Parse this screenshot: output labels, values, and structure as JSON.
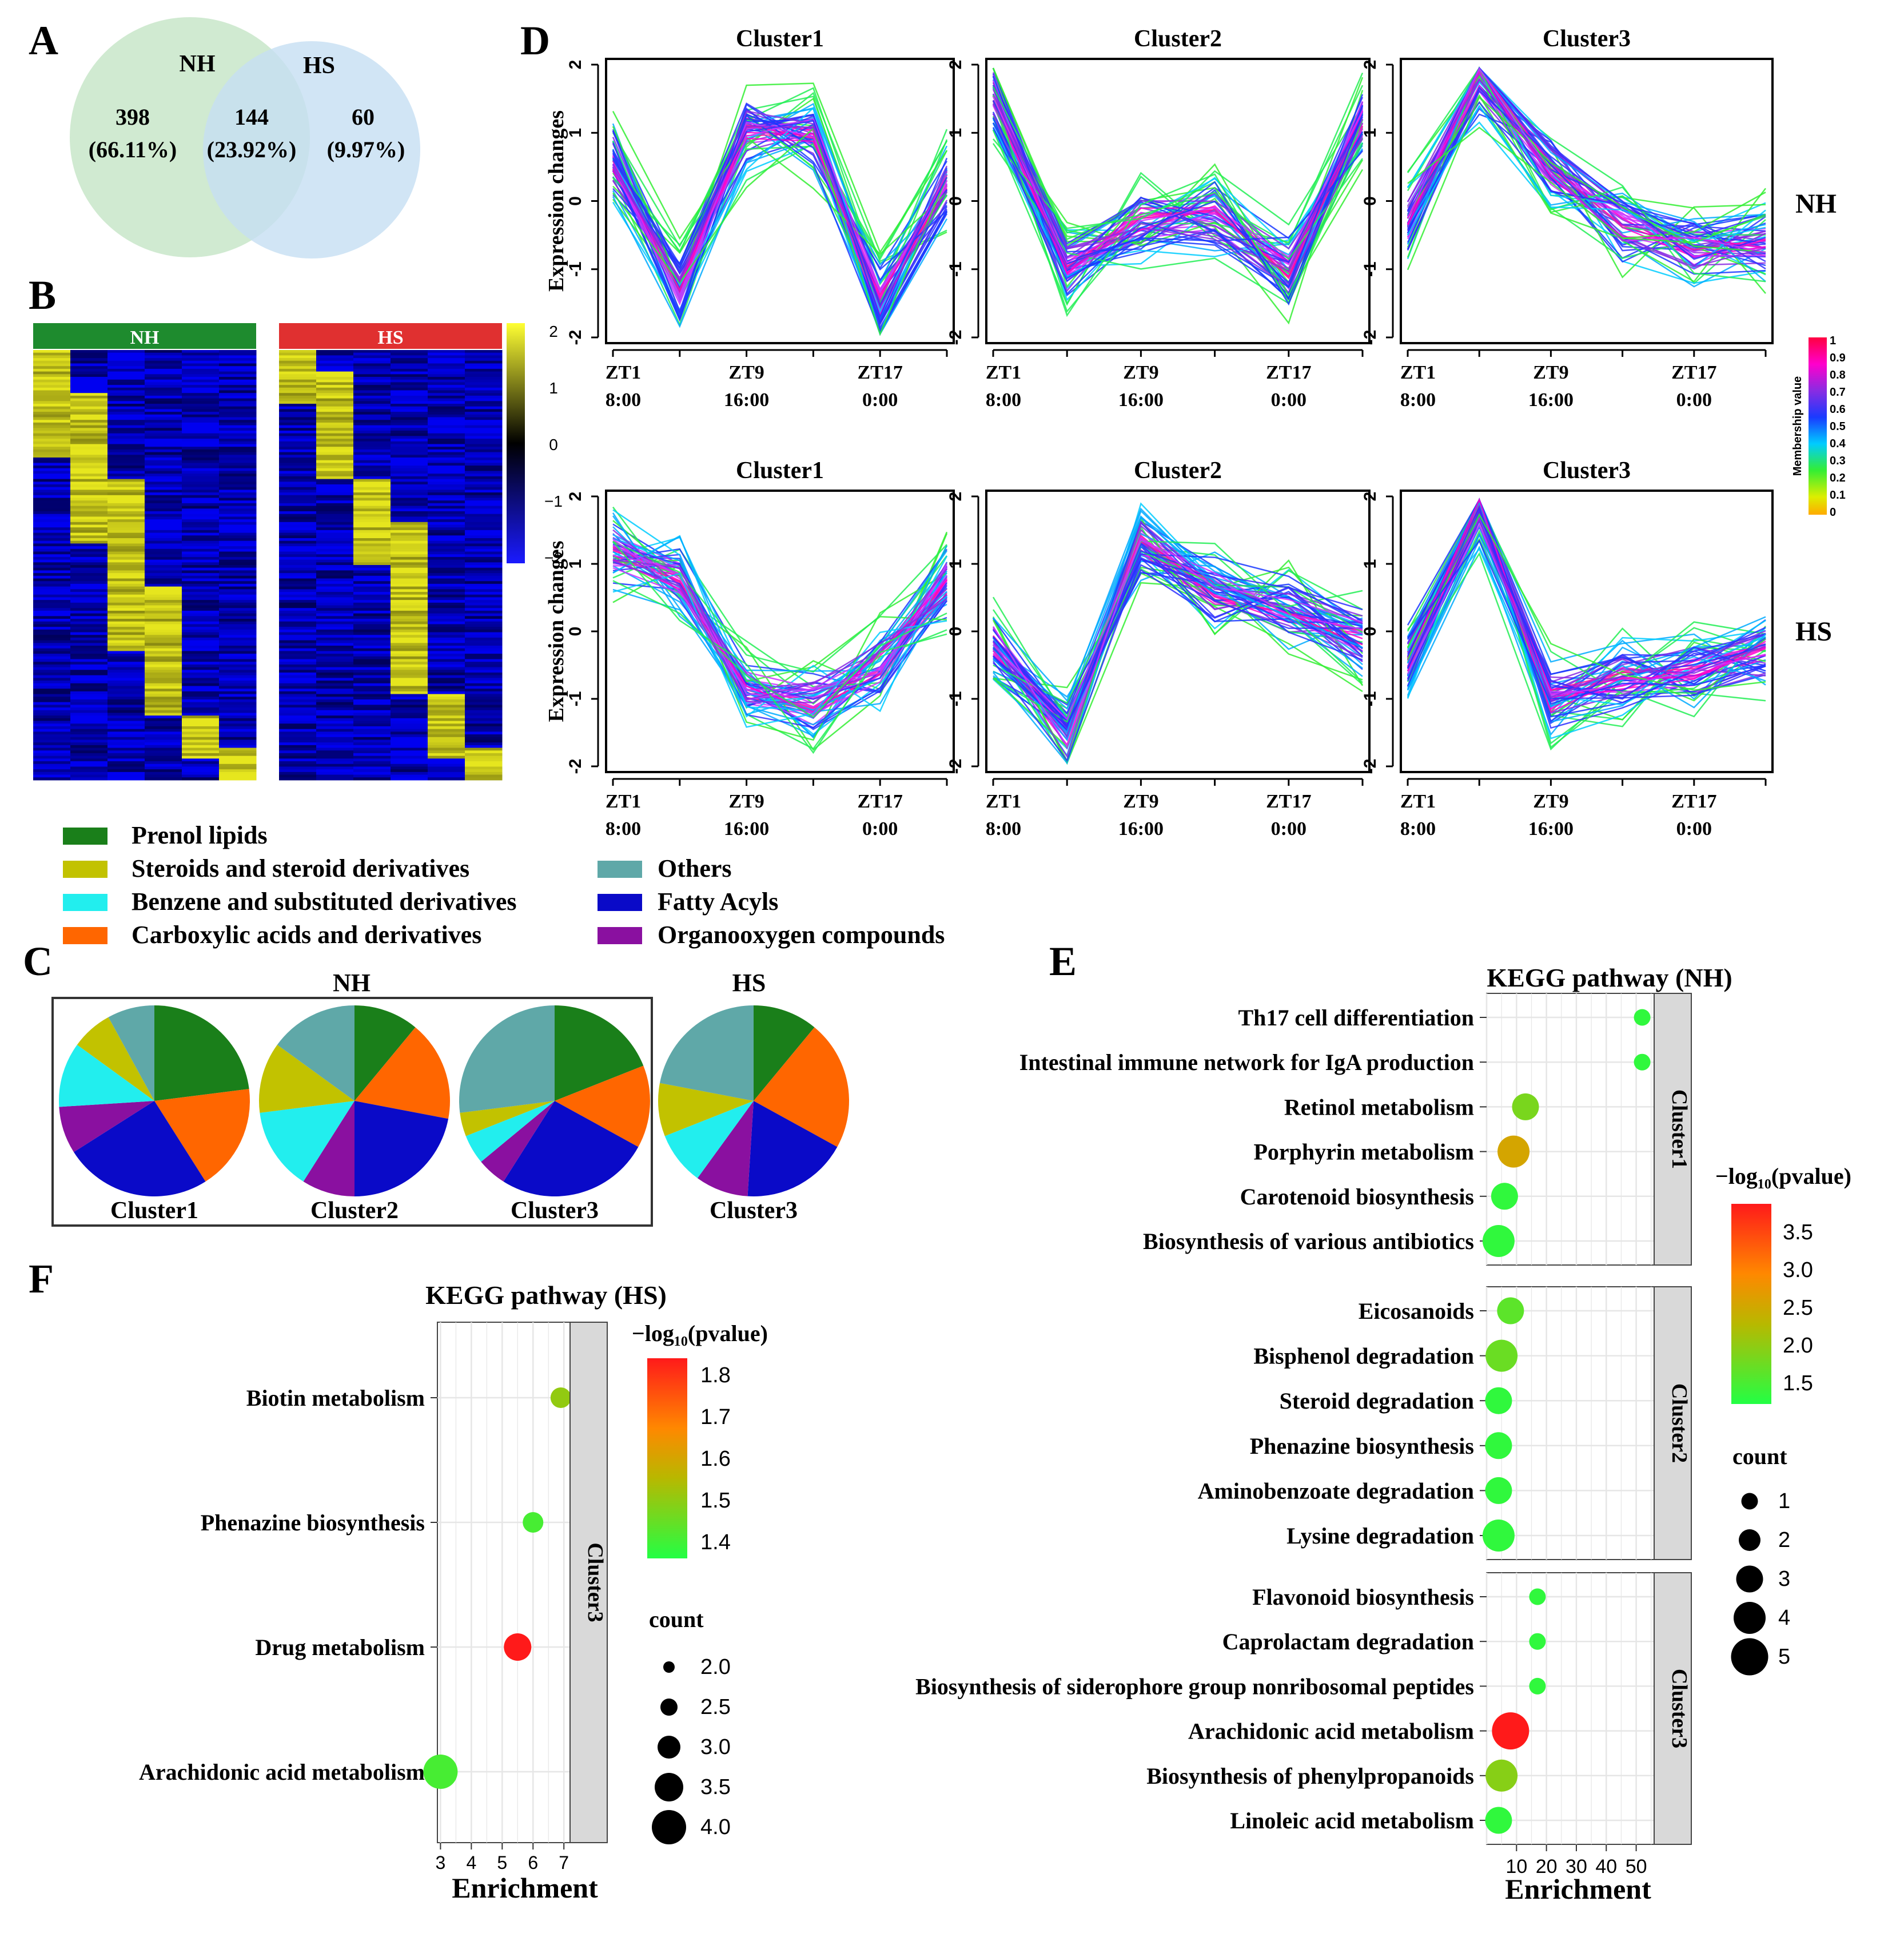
{
  "panel_letters": {
    "A": "A",
    "B": "B",
    "C": "C",
    "D": "D",
    "E": "E",
    "F": "F"
  },
  "venn": {
    "set1": {
      "name": "NH",
      "color": "#c8e6c9"
    },
    "set2": {
      "name": "HS",
      "color": "#c6dff2"
    },
    "left_count": "398",
    "left_pct": "(66.11%)",
    "mid_count": "144",
    "mid_pct": "(23.92%)",
    "right_count": "60",
    "right_pct": "(9.97%)"
  },
  "heatmap": {
    "left_label": "NH",
    "right_label": "HS",
    "left_color": "#1e8b2e",
    "right_color": "#e03030",
    "scale_ticks": [
      "2",
      "1",
      "0",
      "−1",
      "−2"
    ],
    "scale_colors": [
      "#ffff33",
      "#000000",
      "#1a1aff"
    ]
  },
  "category_legend": [
    {
      "label": "Prenol lipids",
      "color": "#1a7f1a"
    },
    {
      "label": "Steroids and steroid derivatives",
      "color": "#c2c200"
    },
    {
      "label": "Benzene and substituted derivatives",
      "color": "#22eeee"
    },
    {
      "label": "Carboxylic acids and derivatives",
      "color": "#ff6600"
    },
    {
      "label": "Others",
      "color": "#5fa8a8"
    },
    {
      "label": "Fatty Acyls",
      "color": "#0a0ac8"
    },
    {
      "label": "Organooxygen compounds",
      "color": "#8a10a0"
    }
  ],
  "pies": {
    "nh_title": "NH",
    "hs_title": "HS",
    "items": [
      {
        "label": "Cluster1",
        "group": "NH",
        "values": [
          23,
          0,
          0,
          18,
          25,
          8,
          11,
          7,
          8
        ]
      },
      {
        "label": "Cluster2",
        "group": "NH",
        "values": [
          11,
          0,
          0,
          17,
          22,
          9,
          14,
          12,
          15
        ]
      },
      {
        "label": "Cluster3",
        "group": "NH",
        "values": [
          19,
          0,
          0,
          14,
          26,
          5,
          5,
          4,
          27
        ]
      },
      {
        "label": "Cluster3",
        "group": "HS",
        "values": [
          11,
          0,
          0,
          22,
          18,
          9,
          9,
          9,
          22
        ]
      }
    ],
    "slice_order_note": "values in legend order: Prenol, -, -, Carboxylic, Fatty, Organooxygen, Benzene, Steroids, Others"
  },
  "chart_data": [
    {
      "type": "line",
      "title": "Cluster1",
      "group": "NH",
      "panel": "D",
      "ylabel": "Expression changes",
      "ylim": [
        -2,
        2
      ],
      "x_ticks": [
        "ZT1\n8:00",
        "ZT9\n16:00",
        "ZT17\n0:00"
      ],
      "center_profile": [
        0.6,
        -1.3,
        1.0,
        1.0,
        -1.5,
        0.3
      ]
    },
    {
      "type": "line",
      "title": "Cluster2",
      "group": "NH",
      "panel": "D",
      "ylabel": "Expression changes",
      "ylim": [
        -2,
        2
      ],
      "x_ticks": [
        "ZT1\n8:00",
        "ZT9\n16:00",
        "ZT17\n0:00"
      ],
      "center_profile": [
        1.6,
        -1.0,
        -0.3,
        -0.2,
        -1.0,
        1.2
      ]
    },
    {
      "type": "line",
      "title": "Cluster3",
      "group": "NH",
      "panel": "D",
      "ylabel": "Expression changes",
      "ylim": [
        -2,
        2
      ],
      "x_ticks": [
        "ZT1\n8:00",
        "ZT9\n16:00",
        "ZT17\n0:00"
      ],
      "center_profile": [
        -0.3,
        1.8,
        0.5,
        -0.4,
        -0.7,
        -0.6
      ]
    },
    {
      "type": "line",
      "title": "Cluster1",
      "group": "HS",
      "panel": "D",
      "ylabel": "Expression changes",
      "ylim": [
        -2,
        2
      ],
      "x_ticks": [
        "ZT1\n8:00",
        "ZT9\n16:00",
        "ZT17\n0:00"
      ],
      "center_profile": [
        1.2,
        0.8,
        -0.9,
        -1.1,
        -0.5,
        0.7
      ]
    },
    {
      "type": "line",
      "title": "Cluster2",
      "group": "HS",
      "panel": "D",
      "ylabel": "Expression changes",
      "ylim": [
        -2,
        2
      ],
      "x_ticks": [
        "ZT1\n8:00",
        "ZT9\n16:00",
        "ZT17\n0:00"
      ],
      "center_profile": [
        -0.2,
        -1.5,
        1.3,
        0.6,
        0.3,
        -0.1
      ]
    },
    {
      "type": "line",
      "title": "Cluster3",
      "group": "HS",
      "panel": "D",
      "ylabel": "Expression changes",
      "ylim": [
        -2,
        2
      ],
      "x_ticks": [
        "ZT1\n8:00",
        "ZT9\n16:00",
        "ZT17\n0:00"
      ],
      "center_profile": [
        -0.4,
        1.8,
        -1.0,
        -0.7,
        -0.6,
        -0.3
      ]
    },
    {
      "type": "scatter",
      "panel": "E",
      "title": "KEGG pathway (NH)",
      "xlabel": "Enrichment",
      "x_ticks": [
        "10",
        "20",
        "30",
        "40",
        "50"
      ],
      "xlim": [
        0,
        56
      ],
      "color_title": "−log₁₀(pvalue)",
      "color_ticks": [
        "3.5",
        "3.0",
        "2.5",
        "2.0",
        "1.5"
      ],
      "color_range": [
        1.3,
        3.9
      ],
      "size_title": "count",
      "size_ticks": [
        "1",
        "2",
        "3",
        "4",
        "5"
      ],
      "facets": [
        {
          "label": "Cluster1",
          "points": [
            {
              "pathway": "Th17 cell differentiation",
              "enrichment": 52,
              "count": 1,
              "p": 1.4
            },
            {
              "pathway": "Intestinal immune network for IgA production",
              "enrichment": 52,
              "count": 1,
              "p": 1.4
            },
            {
              "pathway": "Retinol metabolism",
              "enrichment": 13,
              "count": 3,
              "p": 1.9
            },
            {
              "pathway": "Porphyrin metabolism",
              "enrichment": 9,
              "count": 4,
              "p": 2.6
            },
            {
              "pathway": "Carotenoid biosynthesis",
              "enrichment": 6,
              "count": 3,
              "p": 1.4
            },
            {
              "pathway": "Biosynthesis of various antibiotics",
              "enrichment": 4,
              "count": 4,
              "p": 1.4
            }
          ]
        },
        {
          "label": "Cluster2",
          "points": [
            {
              "pathway": "Eicosanoids",
              "enrichment": 8,
              "count": 3,
              "p": 1.7
            },
            {
              "pathway": "Bisphenol degradation",
              "enrichment": 5,
              "count": 4,
              "p": 1.8
            },
            {
              "pathway": "Steroid degradation",
              "enrichment": 4,
              "count": 3,
              "p": 1.4
            },
            {
              "pathway": "Phenazine biosynthesis",
              "enrichment": 4,
              "count": 3,
              "p": 1.4
            },
            {
              "pathway": "Aminobenzoate degradation",
              "enrichment": 4,
              "count": 3,
              "p": 1.4
            },
            {
              "pathway": "Lysine degradation",
              "enrichment": 4,
              "count": 4,
              "p": 1.4
            }
          ]
        },
        {
          "label": "Cluster3",
          "points": [
            {
              "pathway": "Flavonoid biosynthesis",
              "enrichment": 17,
              "count": 1,
              "p": 1.4
            },
            {
              "pathway": "Caprolactam degradation",
              "enrichment": 17,
              "count": 1,
              "p": 1.4
            },
            {
              "pathway": "Biosynthesis of siderophore group nonribosomal peptides",
              "enrichment": 17,
              "count": 1,
              "p": 1.4
            },
            {
              "pathway": "Arachidonic acid metabolism",
              "enrichment": 8,
              "count": 5,
              "p": 3.9
            },
            {
              "pathway": "Biosynthesis of phenylpropanoids",
              "enrichment": 5,
              "count": 4,
              "p": 2.0
            },
            {
              "pathway": "Linoleic acid metabolism",
              "enrichment": 4,
              "count": 3,
              "p": 1.4
            }
          ]
        }
      ]
    },
    {
      "type": "scatter",
      "panel": "F",
      "title": "KEGG pathway (HS)",
      "xlabel": "Enrichment",
      "x_ticks": [
        "3",
        "4",
        "5",
        "6",
        "7"
      ],
      "xlim": [
        2.9,
        7.2
      ],
      "color_title": "−log₁₀(pvalue)",
      "color_ticks": [
        "1.8",
        "1.7",
        "1.6",
        "1.5",
        "1.4"
      ],
      "color_range": [
        1.35,
        1.85
      ],
      "size_title": "count",
      "size_ticks": [
        "2.0",
        "2.5",
        "3.0",
        "3.5",
        "4.0"
      ],
      "facets": [
        {
          "label": "Cluster3",
          "points": [
            {
              "pathway": "Biotin metabolism",
              "enrichment": 6.9,
              "count": 2,
              "p": 1.5
            },
            {
              "pathway": "Phenazine biosynthesis",
              "enrichment": 6.0,
              "count": 2,
              "p": 1.4
            },
            {
              "pathway": "Drug metabolism",
              "enrichment": 5.5,
              "count": 3,
              "p": 1.85
            },
            {
              "pathway": "Arachidonic acid metabolism",
              "enrichment": 3.0,
              "count": 4,
              "p": 1.4
            }
          ]
        }
      ]
    }
  ],
  "membership_legend": {
    "title": "Membership value",
    "ticks": [
      "1",
      "0.9",
      "0.8",
      "0.7",
      "0.6",
      "0.5",
      "0.4",
      "0.3",
      "0.2",
      "0.1",
      "0"
    ]
  },
  "row_labels": {
    "top": "NH",
    "bottom": "HS"
  }
}
